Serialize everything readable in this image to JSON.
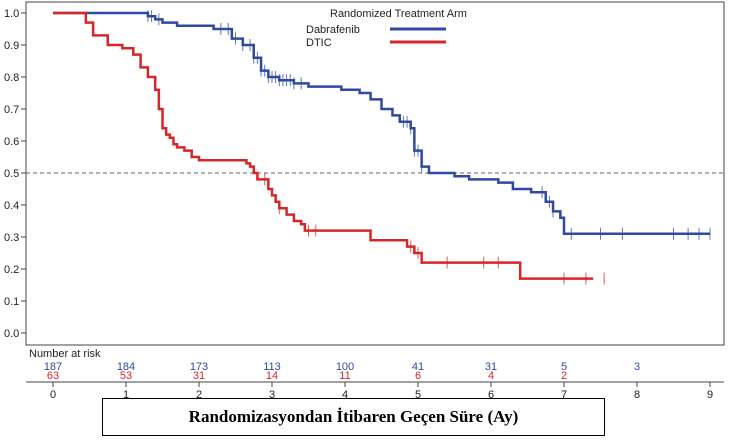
{
  "chart_data": {
    "type": "line",
    "step": true,
    "legend_title": "Randomized Treatment Arm",
    "legend_position": "top-center",
    "xlim": [
      0,
      9
    ],
    "ylim": [
      0.0,
      1.0
    ],
    "x_ticks": [
      0,
      1,
      2,
      3,
      4,
      5,
      6,
      7,
      8,
      9
    ],
    "y_ticks": [
      "0.0",
      "0.1",
      "0.2",
      "0.3",
      "0.4",
      "0.5",
      "0.6",
      "0.7",
      "0.8",
      "0.9",
      "1.0"
    ],
    "reference_line_y": 0.5,
    "grid": false,
    "series": [
      {
        "name": "Dabrafenib",
        "color": "#2f4aa0",
        "points": [
          [
            0,
            1.0
          ],
          [
            1.25,
            1.0
          ],
          [
            1.3,
            0.99
          ],
          [
            1.4,
            0.98
          ],
          [
            1.5,
            0.97
          ],
          [
            1.7,
            0.96
          ],
          [
            2.2,
            0.95
          ],
          [
            2.45,
            0.92
          ],
          [
            2.6,
            0.9
          ],
          [
            2.75,
            0.86
          ],
          [
            2.85,
            0.82
          ],
          [
            2.95,
            0.8
          ],
          [
            3.1,
            0.79
          ],
          [
            3.3,
            0.78
          ],
          [
            3.5,
            0.77
          ],
          [
            3.95,
            0.76
          ],
          [
            4.2,
            0.75
          ],
          [
            4.35,
            0.73
          ],
          [
            4.5,
            0.7
          ],
          [
            4.65,
            0.68
          ],
          [
            4.75,
            0.66
          ],
          [
            4.9,
            0.64
          ],
          [
            4.95,
            0.57
          ],
          [
            5.05,
            0.52
          ],
          [
            5.15,
            0.5
          ],
          [
            5.5,
            0.49
          ],
          [
            5.7,
            0.48
          ],
          [
            6.1,
            0.47
          ],
          [
            6.3,
            0.45
          ],
          [
            6.55,
            0.44
          ],
          [
            6.75,
            0.41
          ],
          [
            6.85,
            0.38
          ],
          [
            6.95,
            0.36
          ],
          [
            7.0,
            0.31
          ],
          [
            9.0,
            0.31
          ]
        ],
        "censor_x": [
          1.3,
          1.35,
          1.45,
          2.3,
          2.4,
          2.5,
          2.6,
          2.7,
          2.75,
          2.8,
          2.85,
          2.9,
          2.95,
          3.0,
          3.05,
          3.1,
          3.15,
          3.2,
          3.25,
          3.3,
          3.4,
          4.8,
          4.85,
          4.9,
          4.95,
          5.0,
          5.05,
          6.7,
          6.8,
          6.85,
          7.1,
          7.5,
          7.8,
          8.5,
          8.7,
          8.85,
          9.0
        ]
      },
      {
        "name": "DTIC",
        "color": "#d62728",
        "points": [
          [
            0,
            1.0
          ],
          [
            0.4,
            1.0
          ],
          [
            0.45,
            0.97
          ],
          [
            0.55,
            0.93
          ],
          [
            0.75,
            0.9
          ],
          [
            0.95,
            0.89
          ],
          [
            1.1,
            0.87
          ],
          [
            1.2,
            0.83
          ],
          [
            1.3,
            0.8
          ],
          [
            1.4,
            0.76
          ],
          [
            1.45,
            0.7
          ],
          [
            1.5,
            0.64
          ],
          [
            1.55,
            0.62
          ],
          [
            1.6,
            0.61
          ],
          [
            1.65,
            0.59
          ],
          [
            1.7,
            0.58
          ],
          [
            1.8,
            0.57
          ],
          [
            1.9,
            0.55
          ],
          [
            2.0,
            0.54
          ],
          [
            2.65,
            0.53
          ],
          [
            2.7,
            0.52
          ],
          [
            2.75,
            0.5
          ],
          [
            2.8,
            0.48
          ],
          [
            2.95,
            0.45
          ],
          [
            3.0,
            0.43
          ],
          [
            3.05,
            0.41
          ],
          [
            3.1,
            0.39
          ],
          [
            3.2,
            0.37
          ],
          [
            3.3,
            0.35
          ],
          [
            3.4,
            0.34
          ],
          [
            3.45,
            0.32
          ],
          [
            4.3,
            0.32
          ],
          [
            4.35,
            0.29
          ],
          [
            4.85,
            0.27
          ],
          [
            4.95,
            0.25
          ],
          [
            5.05,
            0.22
          ],
          [
            5.75,
            0.22
          ],
          [
            6.35,
            0.22
          ],
          [
            6.4,
            0.17
          ],
          [
            7.4,
            0.17
          ]
        ],
        "censor_x": [
          2.9,
          3.1,
          3.5,
          3.6,
          4.9,
          5.0,
          5.4,
          5.9,
          6.1,
          7.0,
          7.3,
          7.55
        ]
      }
    ],
    "risk_table": {
      "label": "Number at risk",
      "x": [
        0,
        1,
        2,
        3,
        4,
        5,
        6,
        7,
        8
      ],
      "rows": [
        {
          "name": "Dabrafenib",
          "values": [
            "187",
            "184",
            "173",
            "113",
            "100",
            "41",
            "31",
            "5",
            "3"
          ]
        },
        {
          "name": "DTIC",
          "values": [
            "63",
            "53",
            "31",
            "14",
            "11",
            "6",
            "4",
            "2",
            ""
          ]
        }
      ]
    }
  },
  "caption": "Randomizasyondan İtibaren Geçen Süre (Ay)"
}
